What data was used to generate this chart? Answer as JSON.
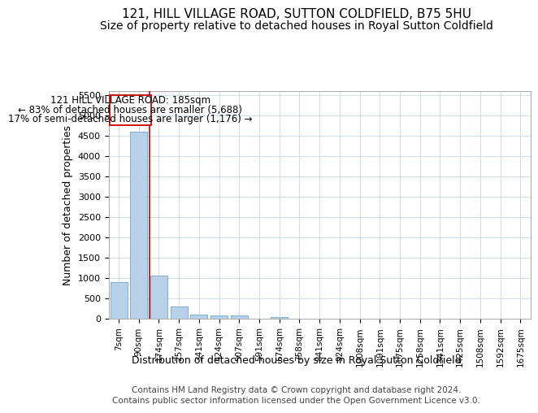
{
  "title1": "121, HILL VILLAGE ROAD, SUTTON COLDFIELD, B75 5HU",
  "title2": "Size of property relative to detached houses in Royal Sutton Coldfield",
  "xlabel": "Distribution of detached houses by size in Royal Sutton Coldfield",
  "ylabel": "Number of detached properties",
  "footer1": "Contains HM Land Registry data © Crown copyright and database right 2024.",
  "footer2": "Contains public sector information licensed under the Open Government Licence v3.0.",
  "bin_labels": [
    "7sqm",
    "90sqm",
    "174sqm",
    "257sqm",
    "341sqm",
    "424sqm",
    "507sqm",
    "591sqm",
    "674sqm",
    "758sqm",
    "841sqm",
    "924sqm",
    "1008sqm",
    "1091sqm",
    "1175sqm",
    "1258sqm",
    "1341sqm",
    "1425sqm",
    "1508sqm",
    "1592sqm",
    "1675sqm"
  ],
  "bar_values": [
    900,
    4600,
    1070,
    300,
    100,
    90,
    80,
    0,
    50,
    0,
    0,
    0,
    0,
    0,
    0,
    0,
    0,
    0,
    0,
    0,
    0
  ],
  "bar_color": "#b8d0e8",
  "bar_edge_color": "#7bafd4",
  "vline_x": 2.0,
  "vline_color": "#cc0000",
  "annotation_text_line1": "121 HILL VILLAGE ROAD: 185sqm",
  "annotation_text_line2": "← 83% of detached houses are smaller (5,688)",
  "annotation_text_line3": "17% of semi-detached houses are larger (1,176) →",
  "annotation_fontsize": 8.5,
  "ylim": [
    0,
    5600
  ],
  "yticks": [
    0,
    500,
    1000,
    1500,
    2000,
    2500,
    3000,
    3500,
    4000,
    4500,
    5000,
    5500
  ],
  "title1_fontsize": 11,
  "title2_fontsize": 10,
  "xlabel_fontsize": 9,
  "ylabel_fontsize": 9,
  "footer_fontsize": 7.5,
  "background_color": "#ffffff",
  "grid_color": "#c8d8e8"
}
